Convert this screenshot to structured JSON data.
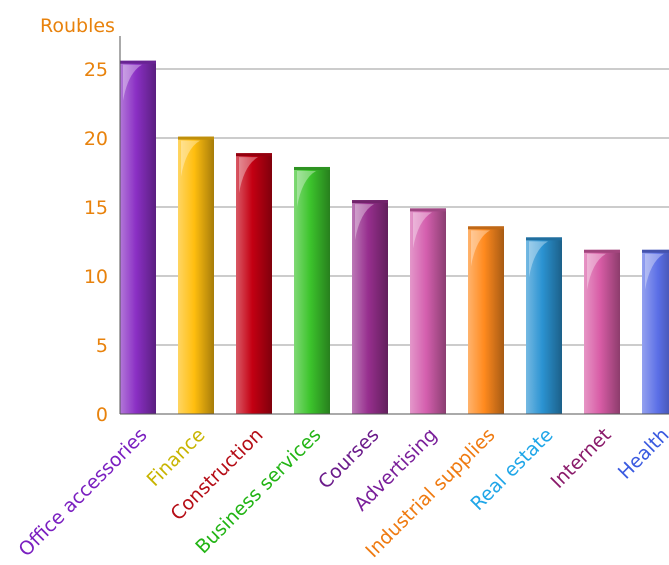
{
  "chart_data": {
    "type": "bar",
    "ylabel": "Roubles",
    "categories": [
      "Office accessories",
      "Finance",
      "Construction",
      "Business services",
      "Courses",
      "Advertising",
      "Industrial supplies",
      "Real estate",
      "Internet",
      "Health"
    ],
    "values": [
      25.6,
      20.1,
      18.9,
      17.9,
      15.5,
      14.9,
      13.6,
      12.8,
      11.9,
      11.9
    ],
    "ylim": [
      0,
      25
    ],
    "yticks": [
      "0",
      "5",
      "10",
      "15",
      "20",
      "25"
    ],
    "grid": true,
    "colors": {
      "bars": [
        "#8a2fc4",
        "#ffbe0f",
        "#c40012",
        "#3cc42c",
        "#972f8e",
        "#d45fae",
        "#ff8a1e",
        "#2b93d2",
        "#d85ca6",
        "#5a6ee6"
      ],
      "labels": [
        "#7a1fc0",
        "#c8b400",
        "#b50d16",
        "#22b414",
        "#6a1a8a",
        "#7a1f9a",
        "#ef7a10",
        "#1fa6e8",
        "#8a1a6a",
        "#3a5ae0"
      ],
      "axis_label": "#e8820c",
      "ytick": "#e8820c"
    }
  }
}
